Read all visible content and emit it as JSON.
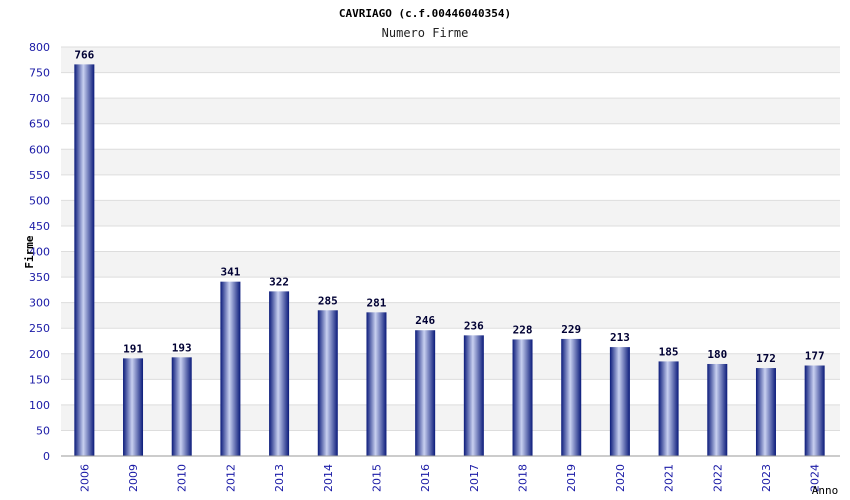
{
  "chart_data": {
    "type": "bar",
    "title": "CAVRIAGO (c.f.00446040354)",
    "subtitle": "Numero Firme",
    "xlabel": "Anno",
    "ylabel": "Firme",
    "ylim": [
      0,
      800
    ],
    "ystep": 50,
    "grid": true,
    "categories": [
      "2006",
      "2009",
      "2010",
      "2012",
      "2013",
      "2014",
      "2015",
      "2016",
      "2017",
      "2018",
      "2019",
      "2020",
      "2021",
      "2022",
      "2023",
      "2024"
    ],
    "values": [
      766,
      191,
      193,
      341,
      322,
      285,
      281,
      246,
      236,
      228,
      229,
      213,
      185,
      180,
      172,
      177
    ],
    "colors": {
      "bar_dark": "#0a1a7a",
      "bar_light": "#c8d0f0",
      "band": "#f3f3f3",
      "grid": "#dddddd",
      "tick": "#1a1aa6"
    }
  }
}
